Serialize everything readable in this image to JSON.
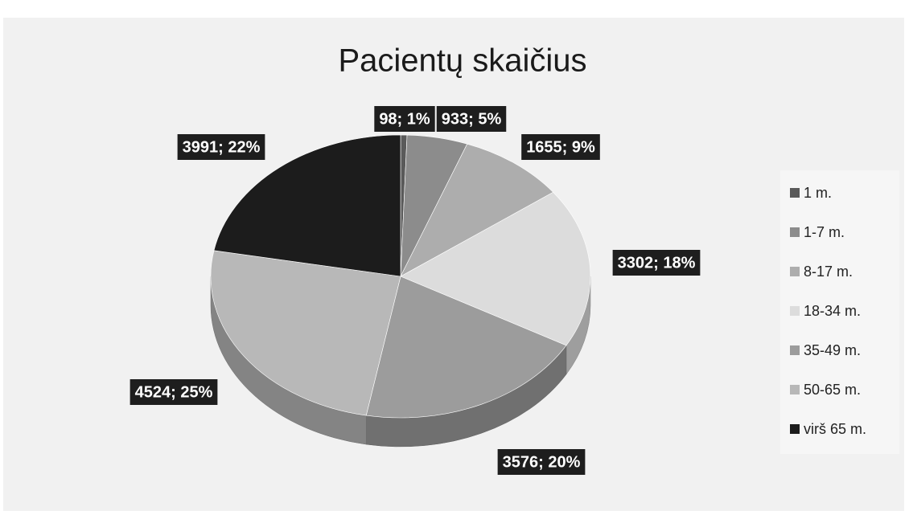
{
  "chart_data": {
    "type": "pie",
    "title": "Pacientų skaičius",
    "categories": [
      "1 m.",
      "1-7 m.",
      "8-17 m.",
      "18-34 m.",
      "35-49 m.",
      "50-65 m.",
      "virš 65 m."
    ],
    "values": [
      98,
      933,
      1655,
      3302,
      3576,
      4524,
      3991
    ],
    "value_labels": [
      "98; 1%",
      "933; 5%",
      "1655; 9%",
      "3302; 18%",
      "3576; 20%",
      "4524; 25%",
      "3991; 22%"
    ],
    "colors": [
      "#5a5a5a",
      "#8c8c8c",
      "#adadad",
      "#dcdcdc",
      "#9c9c9c",
      "#b8b8b8",
      "#1c1c1c"
    ],
    "legend": "right"
  }
}
